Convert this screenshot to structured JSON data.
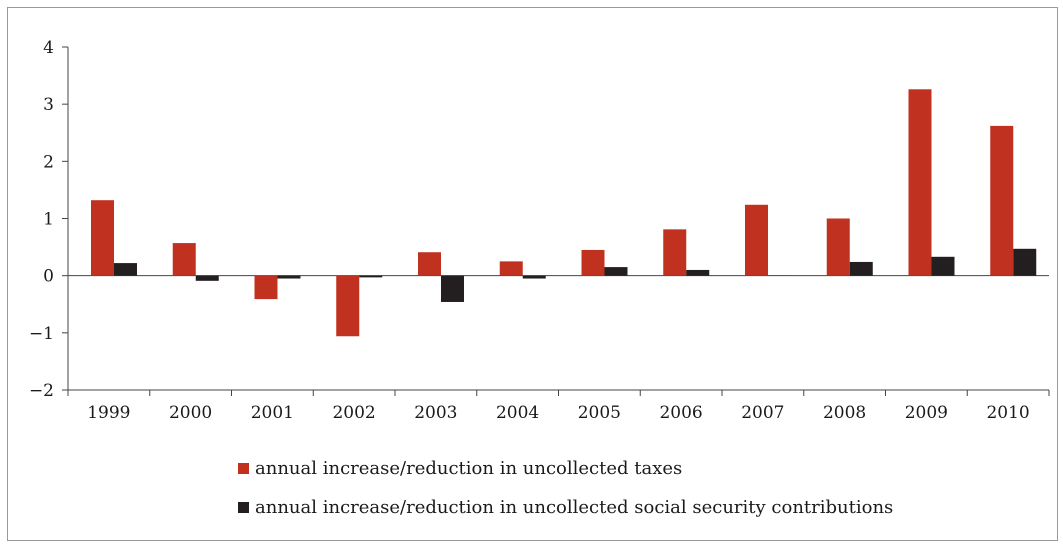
{
  "chart_data": {
    "type": "bar",
    "title": "",
    "xlabel": "",
    "ylabel": "",
    "categories": [
      "1999",
      "2000",
      "2001",
      "2002",
      "2003",
      "2004",
      "2005",
      "2006",
      "2007",
      "2008",
      "2009",
      "2010"
    ],
    "series": [
      {
        "name": "annual increase/reduction in uncollected taxes",
        "color": "#c0311f",
        "values": [
          1.32,
          0.57,
          -0.41,
          -1.06,
          0.41,
          0.25,
          0.45,
          0.81,
          1.24,
          1.0,
          3.26,
          2.62
        ]
      },
      {
        "name": "annual increase/reduction in uncollected social security contributions",
        "color": "#231f20",
        "values": [
          0.22,
          -0.09,
          -0.05,
          -0.03,
          -0.46,
          -0.05,
          0.15,
          0.1,
          0.0,
          0.24,
          0.33,
          0.47
        ]
      }
    ],
    "ylim": [
      -2,
      4
    ],
    "yticks": [
      -2,
      -1,
      0,
      1,
      2,
      3,
      4
    ],
    "ytick_labels": [
      "−2",
      "−1",
      "0",
      "1",
      "2",
      "3",
      "4"
    ],
    "grid": false,
    "legend_position": "bottom"
  }
}
